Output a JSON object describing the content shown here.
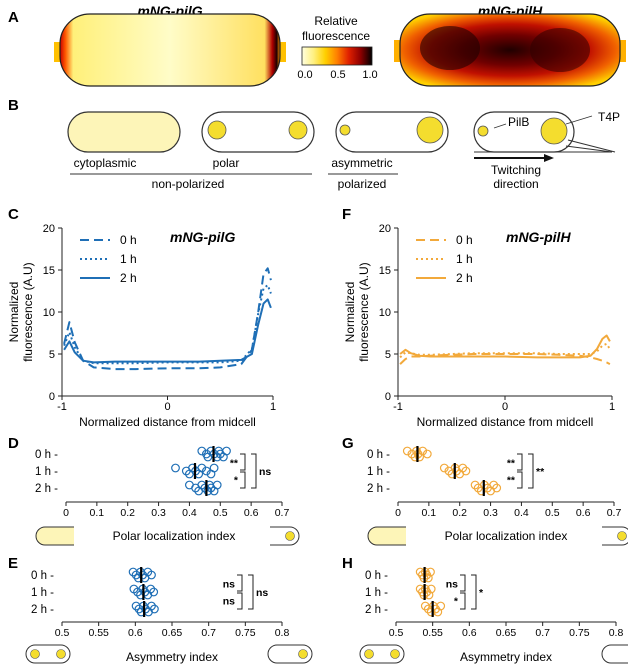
{
  "panel_letters": {
    "A": "A",
    "B": "B",
    "C": "C",
    "D": "D",
    "E": "E",
    "F": "F",
    "G": "G",
    "H": "H"
  },
  "panel_a": {
    "title_left": "mNG-pilG",
    "title_right": "mNG-pilH",
    "colorbar_title_1": "Relative",
    "colorbar_title_2": "fluorescence",
    "colorbar_ticks": [
      "0.0",
      "0.5",
      "1.0"
    ],
    "colorbar_colors": [
      "#ffffe0",
      "#fff080",
      "#ffd000",
      "#ff8000",
      "#e02000",
      "#900000",
      "#000000"
    ]
  },
  "panel_b": {
    "label_cytoplasmic": "cytoplasmic",
    "label_polar": "polar",
    "label_asymmetric": "asymmetric",
    "label_nonpolarized": "non-polarized",
    "label_polarized": "polarized",
    "label_pilb": "PilB",
    "label_t4p": "T4P",
    "label_twitching_1": "Twitching",
    "label_twitching_2": "direction",
    "cell_fill": "#fdf5b8",
    "spot_fill": "#f4dd2e"
  },
  "chart_data": [
    {
      "id": "C",
      "type": "line",
      "title": "mNG-pilG",
      "xlabel": "Normalized distance from midcell",
      "ylabel_1": "Normalized",
      "ylabel_2": "fluorescence (A.U)",
      "xlim": [
        -1,
        1
      ],
      "ylim": [
        0,
        20
      ],
      "xticks": [
        "-1",
        "0",
        "1"
      ],
      "yticks": [
        "0",
        "5",
        "10",
        "15",
        "20"
      ],
      "color": "#1f6fb6",
      "x": [
        -0.98,
        -0.93,
        -0.88,
        -0.8,
        -0.7,
        -0.5,
        -0.3,
        0,
        0.3,
        0.5,
        0.7,
        0.8,
        0.86,
        0.91,
        0.95,
        0.98
      ],
      "series": [
        {
          "name": "0 h",
          "dash": "dash",
          "values": [
            6.2,
            8.8,
            6.4,
            4.2,
            3.4,
            3.2,
            3.2,
            3.3,
            3.3,
            3.4,
            3.8,
            5.5,
            10.0,
            14.5,
            15.2,
            13.8
          ]
        },
        {
          "name": "1 h",
          "dash": "dot",
          "values": [
            6.0,
            7.6,
            5.8,
            4.2,
            3.9,
            3.9,
            3.9,
            4.0,
            4.0,
            4.0,
            4.2,
            5.6,
            9.8,
            12.8,
            13.2,
            12.2
          ]
        },
        {
          "name": "2 h",
          "dash": "solid",
          "values": [
            5.5,
            6.5,
            5.2,
            4.2,
            4.0,
            4.1,
            4.1,
            4.1,
            4.1,
            4.2,
            4.3,
            5.0,
            8.5,
            11.0,
            11.5,
            10.5
          ]
        }
      ]
    },
    {
      "id": "F",
      "type": "line",
      "title": "mNG-pilH",
      "xlabel": "Normalized distance from midcell",
      "ylabel_1": "Normalized",
      "ylabel_2": "fluorescence (A.U)",
      "xlim": [
        -1,
        1
      ],
      "ylim": [
        0,
        20
      ],
      "xticks": [
        "-1",
        "0",
        "1"
      ],
      "yticks": [
        "0",
        "5",
        "10",
        "15",
        "20"
      ],
      "color": "#f2a93b",
      "x": [
        -0.98,
        -0.93,
        -0.88,
        -0.8,
        -0.7,
        -0.5,
        -0.3,
        0,
        0.3,
        0.5,
        0.7,
        0.8,
        0.86,
        0.91,
        0.95,
        0.98
      ],
      "series": [
        {
          "name": "0 h",
          "dash": "dash",
          "values": [
            3.8,
            4.4,
            4.7,
            4.7,
            4.8,
            4.9,
            5.0,
            5.0,
            5.0,
            4.9,
            4.8,
            4.6,
            4.4,
            4.2,
            4.0,
            3.8
          ]
        },
        {
          "name": "1 h",
          "dash": "dot",
          "values": [
            4.6,
            5.2,
            5.1,
            4.9,
            4.9,
            5.0,
            5.1,
            5.1,
            5.1,
            5.0,
            5.0,
            5.0,
            5.3,
            6.0,
            6.2,
            5.6
          ]
        },
        {
          "name": "2 h",
          "dash": "solid",
          "values": [
            5.0,
            5.5,
            5.1,
            4.8,
            4.7,
            4.7,
            4.7,
            4.7,
            4.6,
            4.6,
            4.6,
            4.8,
            5.6,
            6.8,
            7.2,
            6.5
          ]
        }
      ]
    },
    {
      "id": "D",
      "type": "scatter",
      "xlabel": "Polar localization index",
      "xlim": [
        0,
        0.7
      ],
      "xticks": [
        "0",
        "0.1",
        "0.2",
        "0.3",
        "0.4",
        "0.5",
        "0.6",
        "0.7"
      ],
      "rows": [
        "0 h -",
        "1 h -",
        "2 h -"
      ],
      "color": "#1f6fb6",
      "points": [
        [
          0.44,
          0.455,
          0.46,
          0.47,
          0.48,
          0.49,
          0.495,
          0.5,
          0.51,
          0.52
        ],
        [
          0.355,
          0.39,
          0.4,
          0.41,
          0.42,
          0.43,
          0.44,
          0.455,
          0.47,
          0.48
        ],
        [
          0.4,
          0.42,
          0.43,
          0.44,
          0.45,
          0.46,
          0.465,
          0.47,
          0.48,
          0.49
        ]
      ],
      "medians": [
        0.478,
        0.418,
        0.455
      ],
      "sig_pairs": [
        "**",
        "*"
      ],
      "sig_outer": "ns"
    },
    {
      "id": "G",
      "type": "scatter",
      "xlabel": "Polar localization index",
      "xlim": [
        0,
        0.7
      ],
      "xticks": [
        "0",
        "0.1",
        "0.2",
        "0.3",
        "0.4",
        "0.5",
        "0.6",
        "0.7"
      ],
      "rows": [
        "0 h -",
        "1 h -",
        "2 h -"
      ],
      "color": "#f2a93b",
      "points": [
        [
          0.03,
          0.045,
          0.055,
          0.06,
          0.065,
          0.07,
          0.08,
          0.095
        ],
        [
          0.15,
          0.165,
          0.175,
          0.185,
          0.19,
          0.2,
          0.21,
          0.22
        ],
        [
          0.25,
          0.26,
          0.27,
          0.28,
          0.29,
          0.3,
          0.31,
          0.32
        ]
      ],
      "medians": [
        0.063,
        0.184,
        0.278
      ],
      "sig_pairs": [
        "**",
        "**"
      ],
      "sig_outer": "**"
    },
    {
      "id": "E",
      "type": "scatter",
      "xlabel": "Asymmetry index",
      "xlim": [
        0.5,
        0.8
      ],
      "xticks": [
        "0.5",
        "0.55",
        "0.6",
        "0.65",
        "0.7",
        "0.75",
        "0.8"
      ],
      "rows": [
        "0 h -",
        "1 h -",
        "2 h -"
      ],
      "color": "#1f6fb6",
      "points": [
        [
          0.597,
          0.601,
          0.604,
          0.607,
          0.61,
          0.613,
          0.617,
          0.622
        ],
        [
          0.598,
          0.603,
          0.607,
          0.61,
          0.613,
          0.617,
          0.621,
          0.625
        ],
        [
          0.601,
          0.605,
          0.608,
          0.611,
          0.614,
          0.618,
          0.622,
          0.626
        ]
      ],
      "medians": [
        0.608,
        0.611,
        0.612
      ],
      "sig_pairs": [
        "ns",
        "ns"
      ],
      "sig_outer": "ns"
    },
    {
      "id": "H",
      "type": "scatter",
      "xlabel": "Asymmetry index",
      "xlim": [
        0.5,
        0.8
      ],
      "xticks": [
        "0.5",
        "0.55",
        "0.6",
        "0.65",
        "0.7",
        "0.75",
        "0.8"
      ],
      "rows": [
        "0 h -",
        "1 h -",
        "2 h -"
      ],
      "color": "#f2a93b",
      "points": [
        [
          0.533,
          0.536,
          0.538,
          0.54,
          0.542,
          0.544,
          0.547
        ],
        [
          0.533,
          0.536,
          0.538,
          0.54,
          0.542,
          0.545,
          0.548
        ],
        [
          0.54,
          0.544,
          0.548,
          0.551,
          0.554,
          0.557,
          0.561
        ]
      ],
      "medians": [
        0.539,
        0.539,
        0.55
      ],
      "sig_pairs": [
        "ns",
        "*"
      ],
      "sig_outer": "*"
    }
  ]
}
